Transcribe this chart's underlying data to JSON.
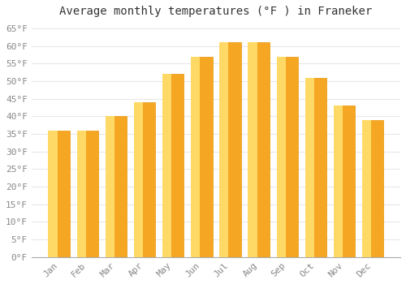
{
  "title": "Average monthly temperatures (°F ) in Franeker",
  "months": [
    "Jan",
    "Feb",
    "Mar",
    "Apr",
    "May",
    "Jun",
    "Jul",
    "Aug",
    "Sep",
    "Oct",
    "Nov",
    "Dec"
  ],
  "values": [
    36,
    36,
    40,
    44,
    52,
    57,
    61,
    61,
    57,
    51,
    43,
    39
  ],
  "bar_color_left": "#FFD966",
  "bar_color_right": "#F5A623",
  "bar_edge_color": "#E8960A",
  "ylim": [
    0,
    67
  ],
  "yticks": [
    0,
    5,
    10,
    15,
    20,
    25,
    30,
    35,
    40,
    45,
    50,
    55,
    60,
    65
  ],
  "ytick_labels": [
    "0°F",
    "5°F",
    "10°F",
    "15°F",
    "20°F",
    "25°F",
    "30°F",
    "35°F",
    "40°F",
    "45°F",
    "50°F",
    "55°F",
    "60°F",
    "65°F"
  ],
  "background_color": "#FFFFFF",
  "grid_color": "#E8E8E8",
  "title_fontsize": 10,
  "tick_fontsize": 8,
  "font_family": "monospace",
  "tick_color": "#888888",
  "bar_width": 0.75
}
